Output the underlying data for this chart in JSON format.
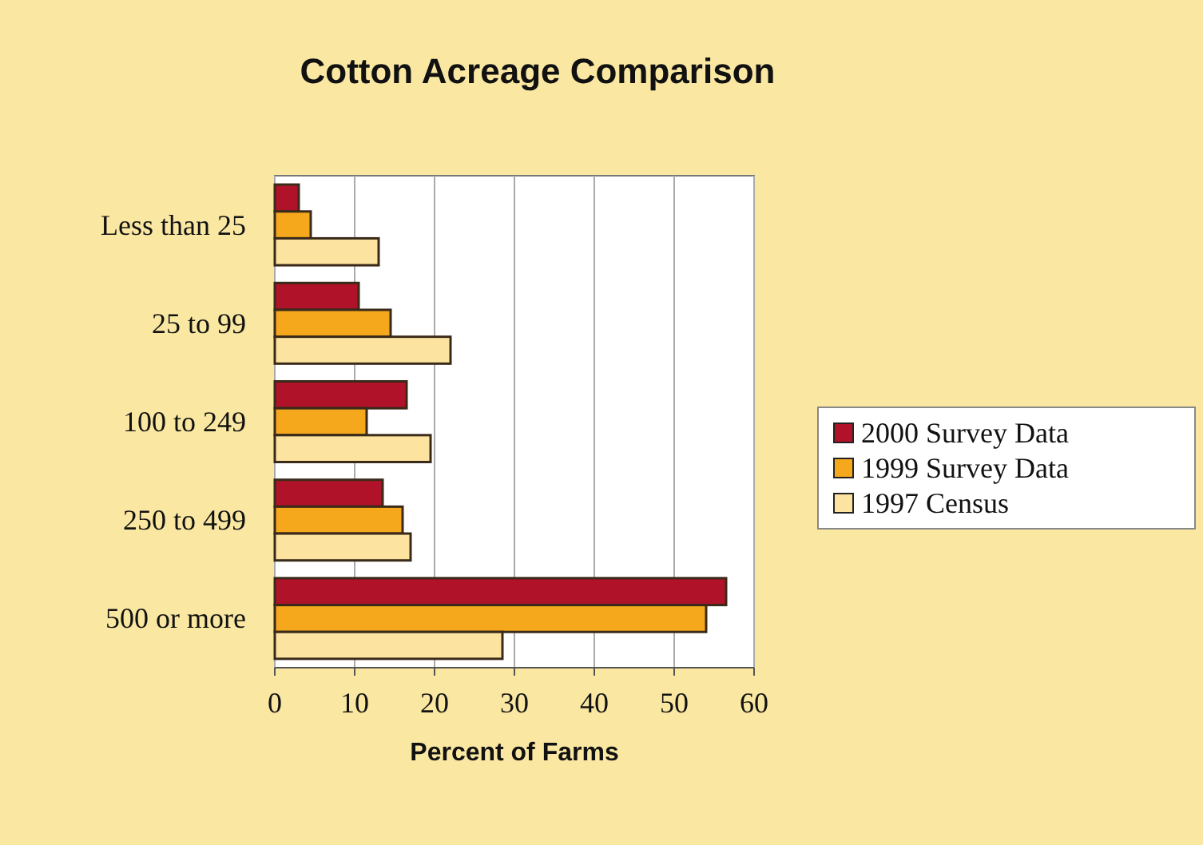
{
  "chart_data": {
    "type": "bar",
    "orientation": "horizontal",
    "title": "Cotton Acreage Comparison",
    "xlabel": "Percent of Farms",
    "categories": [
      "Less than 25",
      "25 to 99",
      "100 to 249",
      "250 to 499",
      "500 or more"
    ],
    "series": [
      {
        "name": "2000 Survey Data",
        "color": "#b0122a",
        "values": [
          3,
          10.5,
          16.5,
          13.5,
          56.5
        ]
      },
      {
        "name": "1999 Survey Data",
        "color": "#f5a81c",
        "values": [
          4.5,
          14.5,
          11.5,
          16,
          54
        ]
      },
      {
        "name": "1997 Census",
        "color": "#fde3a0",
        "values": [
          13,
          22,
          19.5,
          17,
          28.5
        ]
      }
    ],
    "xlim": [
      0,
      60
    ],
    "xticks": [
      0,
      10,
      20,
      30,
      40,
      50,
      60
    ],
    "grid": "x",
    "legend": "right"
  }
}
